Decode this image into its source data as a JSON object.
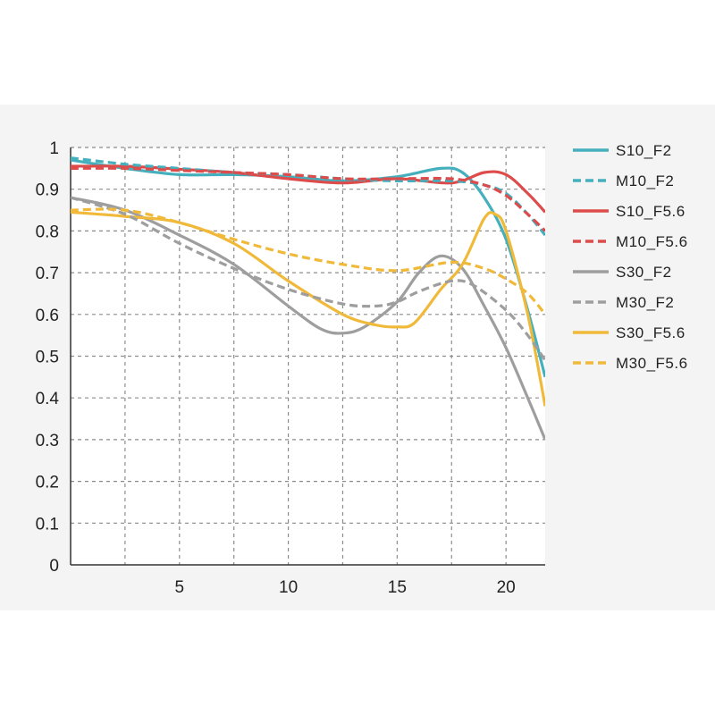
{
  "chart_data": {
    "type": "line",
    "title": "",
    "xlabel": "",
    "ylabel": "",
    "xlim": [
      0,
      21.8
    ],
    "ylim": [
      0,
      1
    ],
    "x_ticks": [
      5,
      10,
      15,
      20
    ],
    "x_tick_labels": [
      "5",
      "10",
      "15",
      "20"
    ],
    "x_gridlines": [
      2.5,
      5,
      7.5,
      10,
      12.5,
      15,
      17.5,
      20
    ],
    "y_ticks": [
      0,
      0.1,
      0.2,
      0.3,
      0.4,
      0.5,
      0.6,
      0.7,
      0.8,
      0.9,
      1
    ],
    "y_tick_labels": [
      "0",
      "0.1",
      "0.2",
      "0.3",
      "0.4",
      "0.5",
      "0.6",
      "0.7",
      "0.8",
      "0.9",
      "1"
    ],
    "grid": true,
    "legend_position": "right",
    "series": [
      {
        "name": "S10_F2",
        "color": "#45b0bd",
        "dash": false,
        "points": [
          [
            0,
            0.97
          ],
          [
            2.5,
            0.95
          ],
          [
            5,
            0.935
          ],
          [
            7.5,
            0.935
          ],
          [
            10,
            0.93
          ],
          [
            12.5,
            0.92
          ],
          [
            15,
            0.93
          ],
          [
            17,
            0.95
          ],
          [
            18,
            0.94
          ],
          [
            19,
            0.88
          ],
          [
            20,
            0.78
          ],
          [
            21,
            0.61
          ],
          [
            21.8,
            0.45
          ]
        ]
      },
      {
        "name": "M10_F2",
        "color": "#45b0bd",
        "dash": true,
        "points": [
          [
            0,
            0.975
          ],
          [
            2.5,
            0.96
          ],
          [
            5,
            0.95
          ],
          [
            7.5,
            0.94
          ],
          [
            10,
            0.935
          ],
          [
            12.5,
            0.925
          ],
          [
            15,
            0.92
          ],
          [
            17.5,
            0.92
          ],
          [
            19,
            0.91
          ],
          [
            20,
            0.89
          ],
          [
            21,
            0.84
          ],
          [
            21.8,
            0.79
          ]
        ]
      },
      {
        "name": "S10_F5.6",
        "color": "#dd4b4b",
        "dash": false,
        "points": [
          [
            0,
            0.955
          ],
          [
            2.5,
            0.955
          ],
          [
            5,
            0.948
          ],
          [
            7.5,
            0.94
          ],
          [
            10,
            0.925
          ],
          [
            12.5,
            0.915
          ],
          [
            15,
            0.925
          ],
          [
            17.5,
            0.915
          ],
          [
            19,
            0.94
          ],
          [
            20,
            0.935
          ],
          [
            21,
            0.89
          ],
          [
            21.8,
            0.845
          ]
        ]
      },
      {
        "name": "M10_F5.6",
        "color": "#dd4b4b",
        "dash": true,
        "points": [
          [
            0,
            0.95
          ],
          [
            2.5,
            0.95
          ],
          [
            5,
            0.945
          ],
          [
            7.5,
            0.94
          ],
          [
            10,
            0.935
          ],
          [
            12.5,
            0.925
          ],
          [
            15,
            0.925
          ],
          [
            17.5,
            0.925
          ],
          [
            19,
            0.91
          ],
          [
            20,
            0.885
          ],
          [
            21,
            0.84
          ],
          [
            21.8,
            0.8
          ]
        ]
      },
      {
        "name": "S30_F2",
        "color": "#9e9e9e",
        "dash": false,
        "points": [
          [
            0,
            0.88
          ],
          [
            2.5,
            0.85
          ],
          [
            5,
            0.79
          ],
          [
            7.5,
            0.72
          ],
          [
            10,
            0.62
          ],
          [
            11.5,
            0.565
          ],
          [
            12.5,
            0.555
          ],
          [
            13.5,
            0.57
          ],
          [
            15,
            0.63
          ],
          [
            16,
            0.7
          ],
          [
            17,
            0.74
          ],
          [
            18,
            0.71
          ],
          [
            19,
            0.62
          ],
          [
            20,
            0.52
          ],
          [
            21,
            0.4
          ],
          [
            21.8,
            0.3
          ]
        ]
      },
      {
        "name": "M30_F2",
        "color": "#9e9e9e",
        "dash": true,
        "points": [
          [
            0,
            0.88
          ],
          [
            2.5,
            0.84
          ],
          [
            5,
            0.77
          ],
          [
            7.5,
            0.71
          ],
          [
            10,
            0.66
          ],
          [
            12.5,
            0.625
          ],
          [
            14,
            0.62
          ],
          [
            15,
            0.63
          ],
          [
            16,
            0.655
          ],
          [
            17.5,
            0.68
          ],
          [
            18.5,
            0.67
          ],
          [
            20,
            0.61
          ],
          [
            21,
            0.55
          ],
          [
            21.8,
            0.49
          ]
        ]
      },
      {
        "name": "S30_F5.6",
        "color": "#f0b93a",
        "dash": false,
        "points": [
          [
            0,
            0.845
          ],
          [
            2.5,
            0.835
          ],
          [
            5,
            0.82
          ],
          [
            7.5,
            0.77
          ],
          [
            10,
            0.68
          ],
          [
            12.5,
            0.6
          ],
          [
            14,
            0.575
          ],
          [
            15,
            0.57
          ],
          [
            15.8,
            0.58
          ],
          [
            17,
            0.66
          ],
          [
            18,
            0.72
          ],
          [
            19,
            0.83
          ],
          [
            19.5,
            0.84
          ],
          [
            20,
            0.8
          ],
          [
            21,
            0.6
          ],
          [
            21.8,
            0.38
          ]
        ]
      },
      {
        "name": "M30_F5.6",
        "color": "#f0b93a",
        "dash": true,
        "points": [
          [
            0,
            0.85
          ],
          [
            2.5,
            0.85
          ],
          [
            5,
            0.82
          ],
          [
            7.5,
            0.78
          ],
          [
            10,
            0.745
          ],
          [
            12.5,
            0.72
          ],
          [
            15,
            0.705
          ],
          [
            17.5,
            0.725
          ],
          [
            19,
            0.71
          ],
          [
            20,
            0.685
          ],
          [
            21,
            0.65
          ],
          [
            21.8,
            0.6
          ]
        ]
      }
    ]
  }
}
